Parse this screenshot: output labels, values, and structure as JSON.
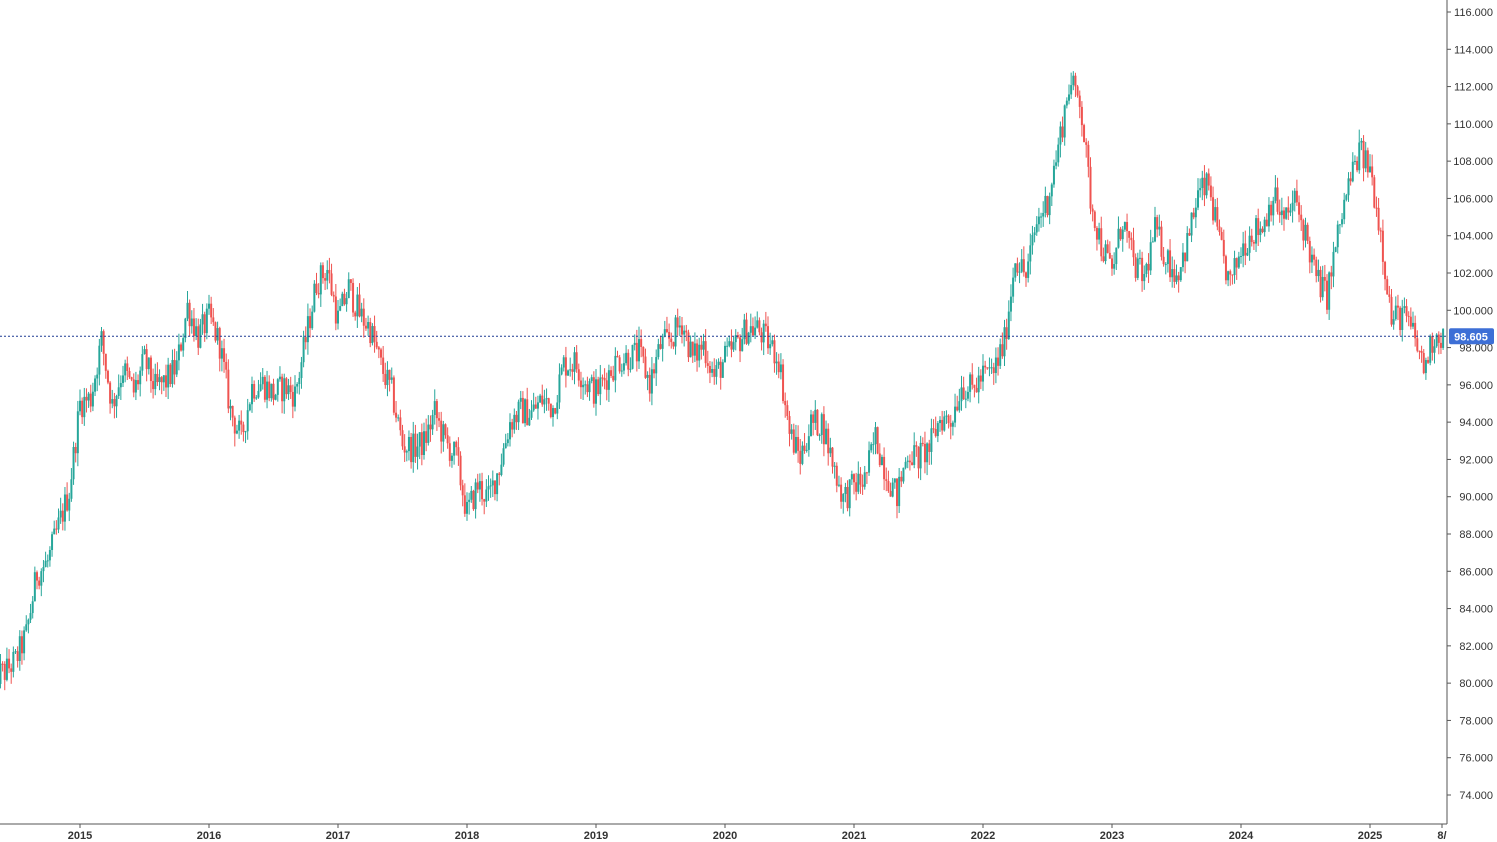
{
  "chart_data": {
    "type": "line",
    "style": "candlestick",
    "colors": {
      "up": "#26a69a",
      "down": "#ef5350",
      "wick": "#555555",
      "price_line": "#1f3a93",
      "price_badge": "#3d6fd6"
    },
    "ylim": [
      73.0,
      116.5
    ],
    "y_ticks": [
      "74.000",
      "76.000",
      "78.000",
      "80.000",
      "82.000",
      "84.000",
      "86.000",
      "88.000",
      "90.000",
      "92.000",
      "94.000",
      "96.000",
      "98.000",
      "100.000",
      "102.000",
      "104.000",
      "106.000",
      "108.000",
      "110.000",
      "112.000",
      "114.000",
      "116.000"
    ],
    "x_ticks": [
      "2015",
      "2016",
      "2017",
      "2018",
      "2019",
      "2020",
      "2021",
      "2022",
      "2023",
      "2024",
      "2025",
      "8/"
    ],
    "last_price": 98.605,
    "last_price_label": "98.605",
    "series": [
      {
        "x": [
          "2014-05",
          "2014-06",
          "2014-07",
          "2014-08",
          "2014-09",
          "2014-10",
          "2014-11",
          "2014-12",
          "2015-01",
          "2015-02",
          "2015-03",
          "2015-04",
          "2015-05",
          "2015-06",
          "2015-07",
          "2015-08",
          "2015-09",
          "2015-10",
          "2015-11",
          "2015-12",
          "2016-01",
          "2016-02",
          "2016-03",
          "2016-04",
          "2016-05",
          "2016-06",
          "2016-07",
          "2016-08",
          "2016-09",
          "2016-10",
          "2016-11",
          "2016-12",
          "2017-01",
          "2017-02",
          "2017-03",
          "2017-04",
          "2017-05",
          "2017-06",
          "2017-07",
          "2017-08",
          "2017-09",
          "2017-10",
          "2017-11",
          "2017-12",
          "2018-01",
          "2018-02",
          "2018-03",
          "2018-04",
          "2018-05",
          "2018-06",
          "2018-07",
          "2018-08",
          "2018-09",
          "2018-10",
          "2018-11",
          "2018-12",
          "2019-01",
          "2019-02",
          "2019-03",
          "2019-04",
          "2019-05",
          "2019-06",
          "2019-07",
          "2019-08",
          "2019-09",
          "2019-10",
          "2019-11",
          "2019-12",
          "2020-01",
          "2020-02",
          "2020-03",
          "2020-04",
          "2020-05",
          "2020-06",
          "2020-07",
          "2020-08",
          "2020-09",
          "2020-10",
          "2020-11",
          "2020-12",
          "2021-01",
          "2021-02",
          "2021-03",
          "2021-04",
          "2021-05",
          "2021-06",
          "2021-07",
          "2021-08",
          "2021-09",
          "2021-10",
          "2021-11",
          "2021-12",
          "2022-01",
          "2022-02",
          "2022-03",
          "2022-04",
          "2022-05",
          "2022-06",
          "2022-07",
          "2022-08",
          "2022-09",
          "2022-10",
          "2022-11",
          "2022-12",
          "2023-01",
          "2023-02",
          "2023-03",
          "2023-04",
          "2023-05",
          "2023-06",
          "2023-07",
          "2023-08",
          "2023-09",
          "2023-10",
          "2023-11",
          "2023-12",
          "2024-01",
          "2024-02",
          "2024-03",
          "2024-04",
          "2024-05",
          "2024-06",
          "2024-07",
          "2024-08",
          "2024-09",
          "2024-10",
          "2024-11",
          "2024-12",
          "2025-01",
          "2025-02",
          "2025-03",
          "2025-04",
          "2025-05",
          "2025-06",
          "2025-07",
          "2025-08"
        ],
        "values": [
          80.4,
          80.6,
          81.2,
          82.6,
          85.9,
          86.5,
          88.4,
          90.3,
          95.0,
          95.3,
          98.4,
          94.9,
          96.9,
          95.6,
          97.3,
          95.8,
          96.2,
          97.0,
          100.2,
          98.6,
          99.6,
          98.2,
          94.6,
          93.1,
          95.9,
          96.1,
          95.5,
          95.9,
          95.5,
          98.4,
          101.5,
          102.2,
          99.5,
          101.2,
          99.8,
          99.0,
          97.0,
          95.6,
          92.8,
          92.6,
          92.9,
          94.5,
          92.9,
          92.1,
          89.1,
          90.6,
          89.9,
          91.6,
          94.0,
          94.6,
          94.5,
          95.2,
          94.8,
          97.1,
          97.2,
          96.2,
          95.6,
          96.5,
          97.3,
          97.5,
          97.7,
          96.1,
          98.1,
          98.5,
          99.4,
          97.4,
          98.2,
          96.4,
          97.4,
          98.1,
          99.0,
          99.0,
          98.3,
          97.4,
          93.4,
          92.1,
          93.9,
          94.0,
          91.9,
          89.9,
          90.6,
          90.9,
          93.2,
          91.3,
          90.0,
          92.4,
          92.1,
          92.6,
          94.2,
          94.1,
          96.0,
          95.7,
          96.5,
          96.7,
          98.3,
          102.9,
          101.8,
          104.7,
          105.9,
          108.7,
          112.1,
          111.5,
          106.0,
          103.5,
          102.1,
          104.9,
          102.5,
          101.7,
          104.3,
          102.9,
          101.9,
          103.6,
          106.2,
          106.7,
          103.5,
          101.3,
          103.3,
          104.2,
          104.5,
          106.2,
          104.7,
          105.9,
          104.1,
          101.7,
          100.8,
          104.0,
          106.7,
          108.5,
          107.6,
          104.2,
          99.5,
          99.8,
          98.8,
          96.9,
          98.7,
          98.6
        ]
      }
    ]
  }
}
